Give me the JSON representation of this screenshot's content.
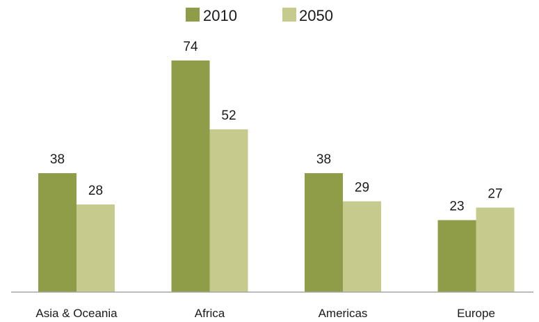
{
  "chart_data": {
    "type": "bar",
    "categories": [
      "Asia & Oceania",
      "Africa",
      "Americas",
      "Europe"
    ],
    "series": [
      {
        "name": "2010",
        "values": [
          38,
          74,
          38,
          23
        ],
        "color": "#8f9d49"
      },
      {
        "name": "2050",
        "values": [
          28,
          52,
          29,
          27
        ],
        "color": "#c6cb8d"
      }
    ],
    "ylim": [
      0,
      80
    ],
    "grid": false,
    "legend_position": "top-center",
    "axis_color": "#a6a6a6"
  }
}
